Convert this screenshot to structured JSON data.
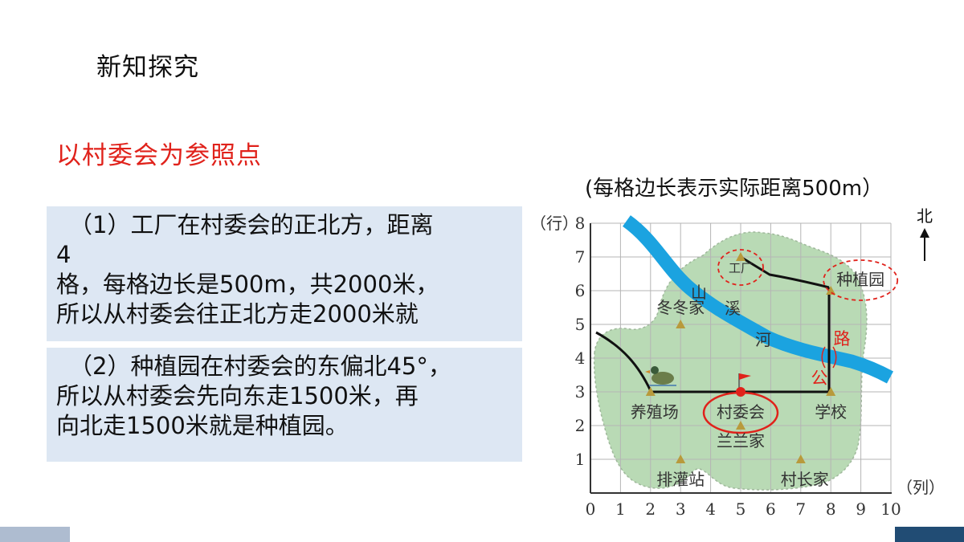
{
  "heading": "新知探究",
  "subheading": "以村委会为参照点",
  "notes": [
    {
      "line1": "（1）工厂在村委会的正北方，距离",
      "line2": "4",
      "line3": "格，每格边长是500m，共2000米，",
      "line4": "所以从村委会往正北方走2000米就"
    },
    {
      "line1": "（2）种植园在村委会的东偏北45°，",
      "line2": "所以从村委会先向东走1500米，再",
      "line3": "向北走1500米就是种植园。"
    }
  ],
  "map": {
    "caption": "(每格边长表示实际距离500m）",
    "row_axis_label": "（行）",
    "col_axis_label": "（列）",
    "north_label": "北",
    "x_ticks": [
      "0",
      "1",
      "2",
      "3",
      "4",
      "5",
      "6",
      "7",
      "8",
      "9",
      "10"
    ],
    "y_ticks": [
      "1",
      "2",
      "3",
      "4",
      "5",
      "6",
      "7",
      "8"
    ],
    "places": [
      {
        "id": "factory",
        "label": "工厂",
        "col": 5,
        "row": 7,
        "circled": "dashed"
      },
      {
        "id": "plantation",
        "label": "种植园",
        "col": 8,
        "row": 6,
        "circled": "dashed"
      },
      {
        "id": "dongdong-home",
        "label": "冬冬家",
        "col": 3,
        "row": 5
      },
      {
        "id": "farm",
        "label": "养殖场",
        "col": 2,
        "row": 3
      },
      {
        "id": "village-committee",
        "label": "村委会",
        "col": 5,
        "row": 3,
        "circled": "solid"
      },
      {
        "id": "school",
        "label": "学校",
        "col": 8,
        "row": 3
      },
      {
        "id": "lanlan-home",
        "label": "兰兰家",
        "col": 5,
        "row": 2
      },
      {
        "id": "pump-station",
        "label": "排灌站",
        "col": 3,
        "row": 1
      },
      {
        "id": "chief-home",
        "label": "村长家",
        "col": 7,
        "row": 1
      }
    ],
    "stream_label": [
      "山",
      "溪",
      "河"
    ],
    "road_label": [
      "路",
      "公"
    ],
    "colors": {
      "land": "#b9dab5",
      "river": "#1ba3e0",
      "grid": "#b5b5b5",
      "marker": "#b89a3c",
      "accent_red": "#e0221b"
    }
  }
}
